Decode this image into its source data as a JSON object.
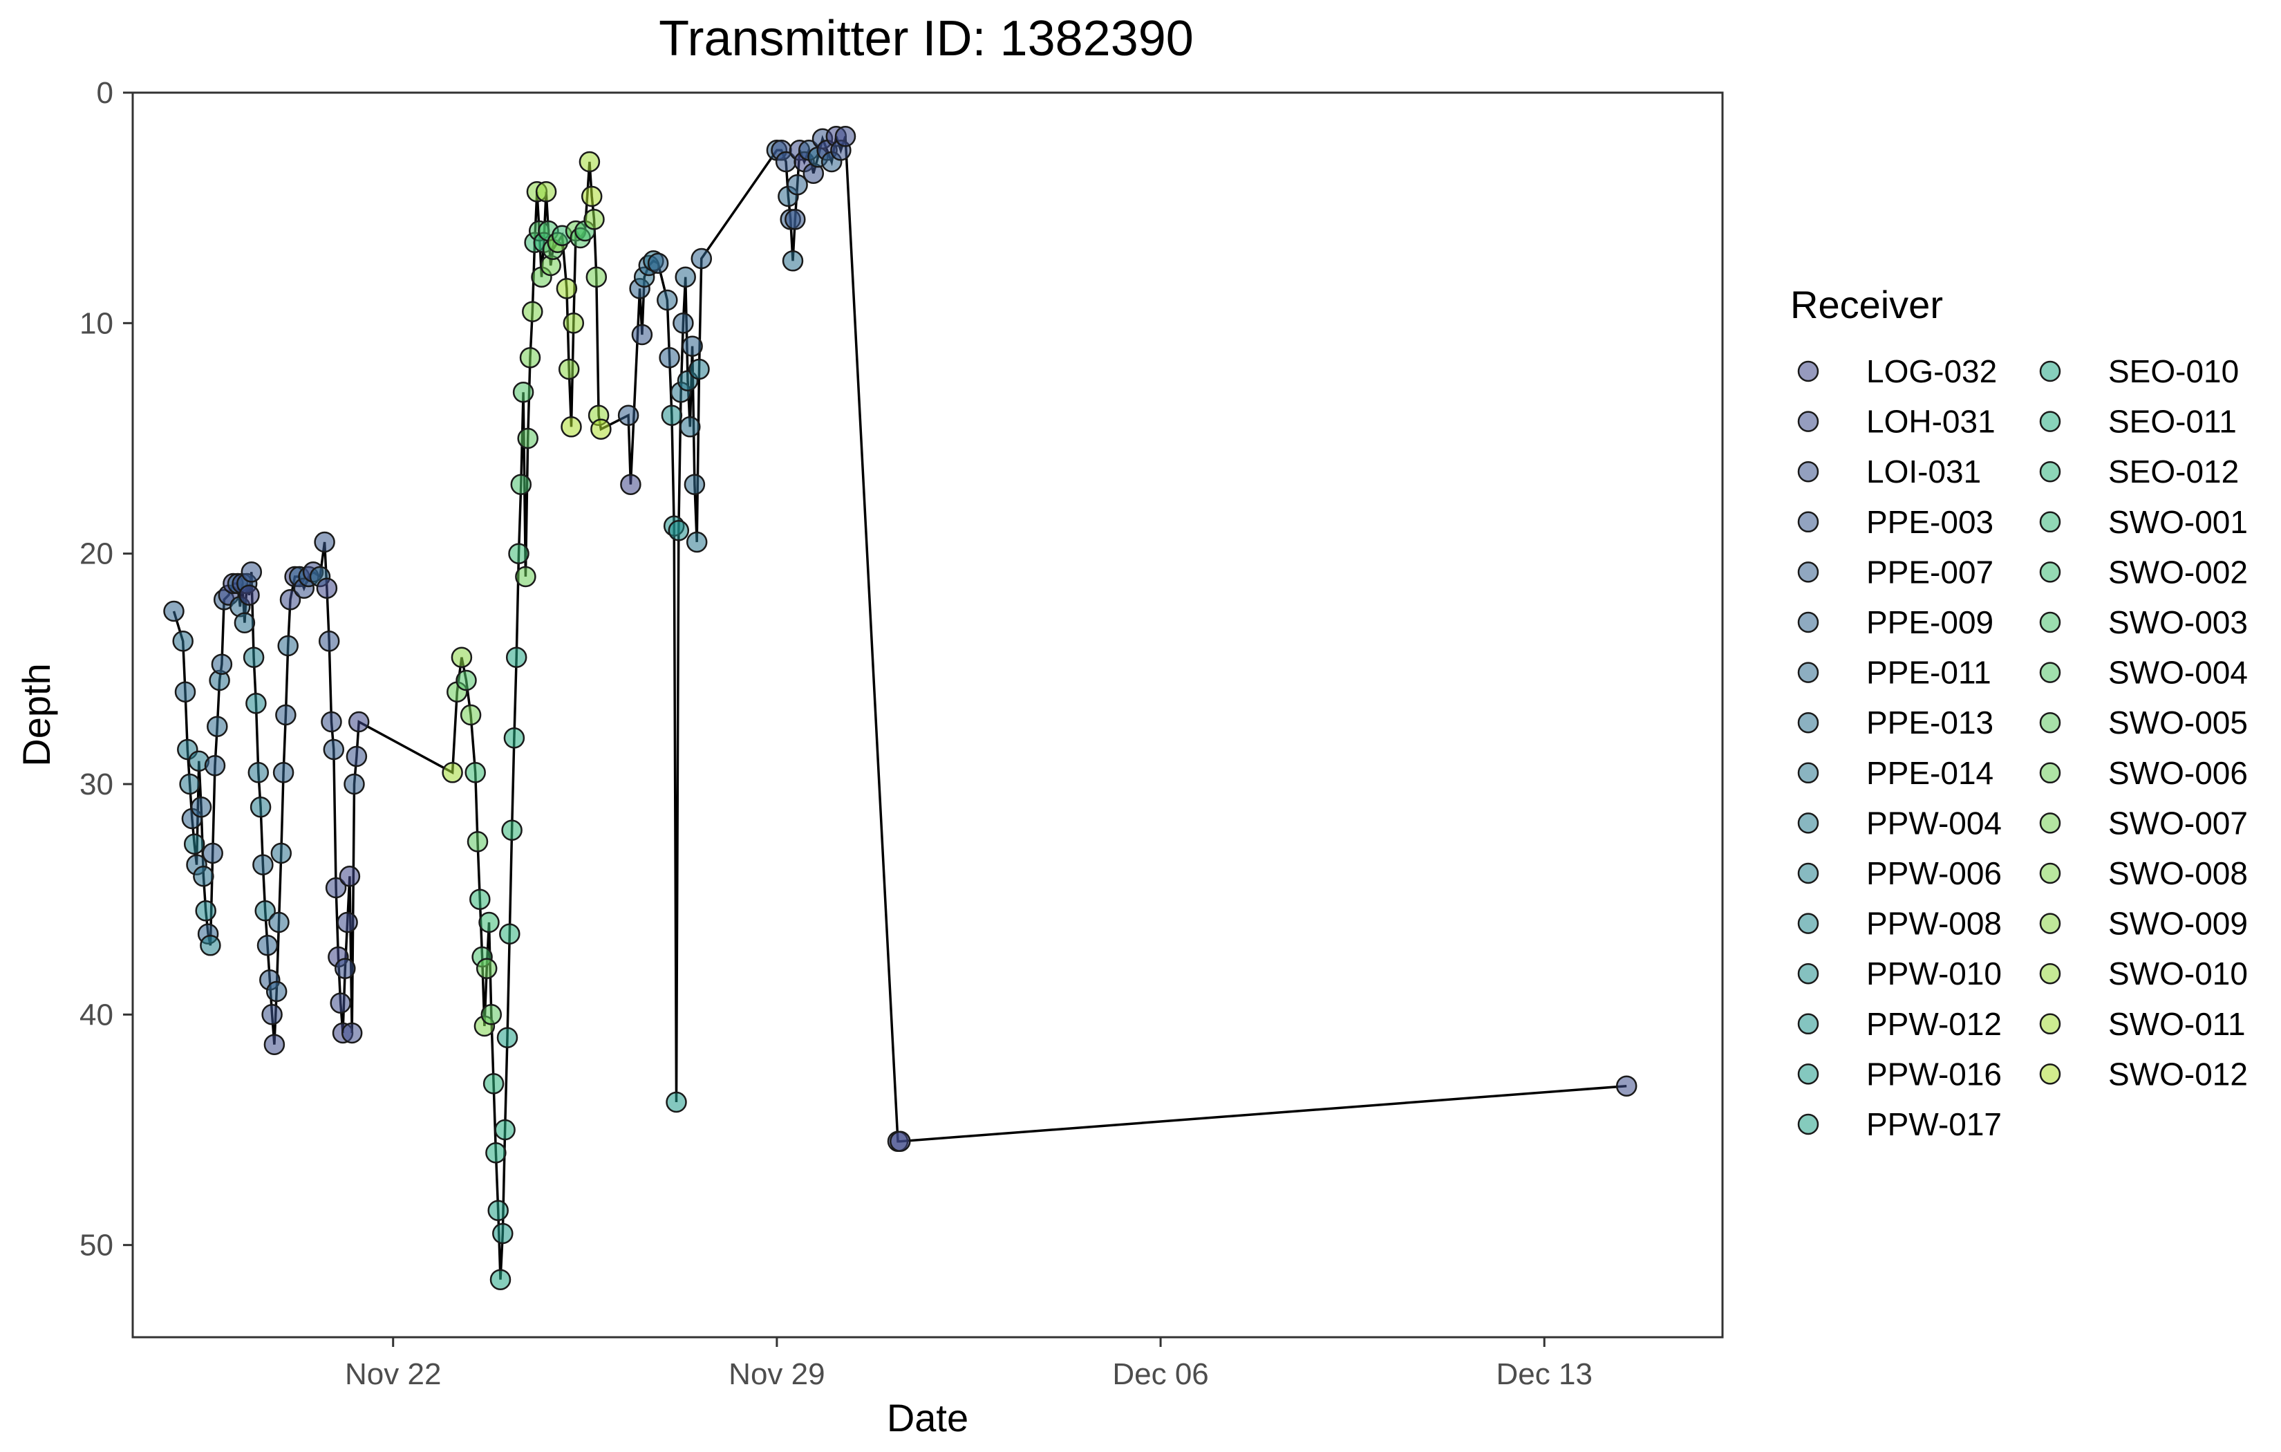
{
  "chart_data": {
    "type": "scatter",
    "title": "Transmitter ID: 1382390",
    "xlabel": "Date",
    "ylabel": "Depth",
    "x_axis_type": "date",
    "y_axis_reversed": true,
    "xlim": [
      "2023-11-17 06:00",
      "2023-12-16 06:00"
    ],
    "ylim": [
      54,
      0
    ],
    "x_ticks": [
      {
        "value": "2023-11-22",
        "label": "Nov 22"
      },
      {
        "value": "2023-11-29",
        "label": "Nov 29"
      },
      {
        "value": "2023-12-06",
        "label": "Dec 06"
      },
      {
        "value": "2023-12-13",
        "label": "Dec 13"
      }
    ],
    "y_ticks": [
      0,
      10,
      20,
      30,
      40,
      50
    ],
    "grid": false,
    "legend_title": "Receiver",
    "legend_position": "right",
    "legend_columns": 2,
    "colors": {
      "line": "#000000",
      "marker_edge": "#1a1a1a",
      "palette_start": "#3e4a89",
      "palette_end": "#7ad151"
    },
    "receivers": [
      {
        "name": "LOG-032",
        "color": "#3f4788"
      },
      {
        "name": "LOH-031",
        "color": "#3e4c8a"
      },
      {
        "name": "LOI-031",
        "color": "#3b528b"
      },
      {
        "name": "PPE-003",
        "color": "#38588c"
      },
      {
        "name": "PPE-007",
        "color": "#355e8d"
      },
      {
        "name": "PPE-009",
        "color": "#32648e"
      },
      {
        "name": "PPE-011",
        "color": "#2f6b8e"
      },
      {
        "name": "PPE-013",
        "color": "#2c718e"
      },
      {
        "name": "PPE-014",
        "color": "#2a768e"
      },
      {
        "name": "PPW-004",
        "color": "#277c8e"
      },
      {
        "name": "PPW-006",
        "color": "#25828e"
      },
      {
        "name": "PPW-008",
        "color": "#23888e"
      },
      {
        "name": "PPW-010",
        "color": "#218e8d"
      },
      {
        "name": "PPW-012",
        "color": "#1f948c"
      },
      {
        "name": "PPW-016",
        "color": "#1f9a8a"
      },
      {
        "name": "PPW-017",
        "color": "#20a086"
      },
      {
        "name": "SEO-010",
        "color": "#22a685"
      },
      {
        "name": "SEO-011",
        "color": "#27ad81"
      },
      {
        "name": "SEO-012",
        "color": "#2eb37c"
      },
      {
        "name": "SWO-001",
        "color": "#35b779"
      },
      {
        "name": "SWO-002",
        "color": "#3dbc74"
      },
      {
        "name": "SWO-003",
        "color": "#48c16e"
      },
      {
        "name": "SWO-004",
        "color": "#52c569"
      },
      {
        "name": "SWO-005",
        "color": "#5ec962"
      },
      {
        "name": "SWO-006",
        "color": "#6ccd5a"
      },
      {
        "name": "SWO-007",
        "color": "#75d054"
      },
      {
        "name": "SWO-008",
        "color": "#7fd34e"
      },
      {
        "name": "SWO-009",
        "color": "#8bd646"
      },
      {
        "name": "SWO-010",
        "color": "#98d83e"
      },
      {
        "name": "SWO-011",
        "color": "#a2da37"
      },
      {
        "name": "SWO-012",
        "color": "#addc30"
      }
    ],
    "points": [
      {
        "t": "2023-11-18 00:00",
        "depth": 22.5,
        "r": "PPE-009"
      },
      {
        "t": "2023-11-18 04:00",
        "depth": 23.8,
        "r": "PPE-013"
      },
      {
        "t": "2023-11-18 05:00",
        "depth": 26.0,
        "r": "PPE-011"
      },
      {
        "t": "2023-11-18 06:00",
        "depth": 28.5,
        "r": "PPW-004"
      },
      {
        "t": "2023-11-18 07:00",
        "depth": 30.0,
        "r": "PPE-014"
      },
      {
        "t": "2023-11-18 08:00",
        "depth": 31.5,
        "r": "PPE-009"
      },
      {
        "t": "2023-11-18 09:00",
        "depth": 32.6,
        "r": "PPW-006"
      },
      {
        "t": "2023-11-18 10:00",
        "depth": 33.5,
        "r": "PPE-011"
      },
      {
        "t": "2023-11-18 11:00",
        "depth": 29.0,
        "r": "PPW-004"
      },
      {
        "t": "2023-11-18 12:00",
        "depth": 31.0,
        "r": "PPE-009"
      },
      {
        "t": "2023-11-18 13:00",
        "depth": 34.0,
        "r": "PPE-013"
      },
      {
        "t": "2023-11-18 14:00",
        "depth": 35.5,
        "r": "PPW-008"
      },
      {
        "t": "2023-11-18 15:00",
        "depth": 36.5,
        "r": "PPE-009"
      },
      {
        "t": "2023-11-18 16:00",
        "depth": 37.0,
        "r": "PPW-006"
      },
      {
        "t": "2023-11-18 17:00",
        "depth": 33.0,
        "r": "PPE-007"
      },
      {
        "t": "2023-11-18 18:00",
        "depth": 29.2,
        "r": "PPE-009"
      },
      {
        "t": "2023-11-18 19:00",
        "depth": 27.5,
        "r": "PPE-011"
      },
      {
        "t": "2023-11-18 20:00",
        "depth": 25.5,
        "r": "PPE-013"
      },
      {
        "t": "2023-11-18 21:00",
        "depth": 24.8,
        "r": "PPE-009"
      },
      {
        "t": "2023-11-18 22:00",
        "depth": 22.0,
        "r": "PPE-007"
      },
      {
        "t": "2023-11-19 00:00",
        "depth": 21.8,
        "r": "LOH-031"
      },
      {
        "t": "2023-11-19 02:00",
        "depth": 21.3,
        "r": "LOG-032"
      },
      {
        "t": "2023-11-19 04:00",
        "depth": 21.3,
        "r": "PPE-009"
      },
      {
        "t": "2023-11-19 05:00",
        "depth": 22.3,
        "r": "PPE-011"
      },
      {
        "t": "2023-11-19 06:00",
        "depth": 21.3,
        "r": "LOH-031"
      },
      {
        "t": "2023-11-19 07:00",
        "depth": 23.0,
        "r": "PPE-013"
      },
      {
        "t": "2023-11-19 08:00",
        "depth": 21.3,
        "r": "PPE-007"
      },
      {
        "t": "2023-11-19 09:00",
        "depth": 21.8,
        "r": "LOG-032"
      },
      {
        "t": "2023-11-19 10:00",
        "depth": 20.8,
        "r": "PPE-003"
      },
      {
        "t": "2023-11-19 11:00",
        "depth": 24.5,
        "r": "PPW-006"
      },
      {
        "t": "2023-11-19 12:00",
        "depth": 26.5,
        "r": "PPW-008"
      },
      {
        "t": "2023-11-19 13:00",
        "depth": 29.5,
        "r": "PPE-014"
      },
      {
        "t": "2023-11-19 14:00",
        "depth": 31.0,
        "r": "PPW-004"
      },
      {
        "t": "2023-11-19 15:00",
        "depth": 33.5,
        "r": "PPE-011"
      },
      {
        "t": "2023-11-19 16:00",
        "depth": 35.5,
        "r": "PPW-006"
      },
      {
        "t": "2023-11-19 17:00",
        "depth": 37.0,
        "r": "PPE-009"
      },
      {
        "t": "2023-11-19 18:00",
        "depth": 38.5,
        "r": "PPE-007"
      },
      {
        "t": "2023-11-19 19:00",
        "depth": 40.0,
        "r": "LOI-031"
      },
      {
        "t": "2023-11-19 20:00",
        "depth": 41.3,
        "r": "LOH-031"
      },
      {
        "t": "2023-11-19 21:00",
        "depth": 39.0,
        "r": "PPE-009"
      },
      {
        "t": "2023-11-19 22:00",
        "depth": 36.0,
        "r": "PPE-011"
      },
      {
        "t": "2023-11-19 23:00",
        "depth": 33.0,
        "r": "PPE-013"
      },
      {
        "t": "2023-11-20 00:00",
        "depth": 29.5,
        "r": "PPE-009"
      },
      {
        "t": "2023-11-20 01:00",
        "depth": 27.0,
        "r": "PPE-007"
      },
      {
        "t": "2023-11-20 02:00",
        "depth": 24.0,
        "r": "PPE-011"
      },
      {
        "t": "2023-11-20 03:00",
        "depth": 22.0,
        "r": "LOH-031"
      },
      {
        "t": "2023-11-20 05:00",
        "depth": 21.0,
        "r": "LOG-032"
      },
      {
        "t": "2023-11-20 07:00",
        "depth": 21.0,
        "r": "PPE-009"
      },
      {
        "t": "2023-11-20 09:00",
        "depth": 21.5,
        "r": "LOI-031"
      },
      {
        "t": "2023-11-20 11:00",
        "depth": 21.0,
        "r": "PPE-007"
      },
      {
        "t": "2023-11-20 13:00",
        "depth": 20.8,
        "r": "LOH-031"
      },
      {
        "t": "2023-11-20 16:00",
        "depth": 21.0,
        "r": "PPE-011"
      },
      {
        "t": "2023-11-20 18:00",
        "depth": 19.5,
        "r": "PPE-003"
      },
      {
        "t": "2023-11-20 19:00",
        "depth": 21.5,
        "r": "LOG-032"
      },
      {
        "t": "2023-11-20 20:00",
        "depth": 23.8,
        "r": "PPE-003"
      },
      {
        "t": "2023-11-20 21:00",
        "depth": 27.3,
        "r": "LOI-031"
      },
      {
        "t": "2023-11-20 22:00",
        "depth": 28.5,
        "r": "PPE-007"
      },
      {
        "t": "2023-11-20 23:00",
        "depth": 34.5,
        "r": "LOH-031"
      },
      {
        "t": "2023-11-21 00:00",
        "depth": 37.5,
        "r": "LOG-032"
      },
      {
        "t": "2023-11-21 01:00",
        "depth": 39.5,
        "r": "LOH-031"
      },
      {
        "t": "2023-11-21 02:00",
        "depth": 40.8,
        "r": "LOG-032"
      },
      {
        "t": "2023-11-21 03:00",
        "depth": 38.0,
        "r": "LOI-031"
      },
      {
        "t": "2023-11-21 04:00",
        "depth": 36.0,
        "r": "LOH-031"
      },
      {
        "t": "2023-11-21 05:00",
        "depth": 34.0,
        "r": "LOG-032"
      },
      {
        "t": "2023-11-21 06:00",
        "depth": 40.8,
        "r": "LOH-031"
      },
      {
        "t": "2023-11-21 07:00",
        "depth": 30.0,
        "r": "PPE-007"
      },
      {
        "t": "2023-11-21 08:00",
        "depth": 28.8,
        "r": "LOI-031"
      },
      {
        "t": "2023-11-21 09:00",
        "depth": 27.3,
        "r": "LOG-032"
      },
      {
        "t": "2023-11-23 02:00",
        "depth": 29.5,
        "r": "SWO-011"
      },
      {
        "t": "2023-11-23 04:00",
        "depth": 26.0,
        "r": "SWO-006"
      },
      {
        "t": "2023-11-23 06:00",
        "depth": 24.5,
        "r": "SWO-009"
      },
      {
        "t": "2023-11-23 08:00",
        "depth": 25.5,
        "r": "SWO-004"
      },
      {
        "t": "2023-11-23 10:00",
        "depth": 27.0,
        "r": "SWO-007"
      },
      {
        "t": "2023-11-23 12:00",
        "depth": 29.5,
        "r": "SWO-002"
      },
      {
        "t": "2023-11-23 13:00",
        "depth": 32.5,
        "r": "SWO-005"
      },
      {
        "t": "2023-11-23 14:00",
        "depth": 35.0,
        "r": "SWO-001"
      },
      {
        "t": "2023-11-23 15:00",
        "depth": 37.5,
        "r": "SWO-003"
      },
      {
        "t": "2023-11-23 16:00",
        "depth": 40.5,
        "r": "SWO-008"
      },
      {
        "t": "2023-11-23 17:00",
        "depth": 38.0,
        "r": "SWO-006"
      },
      {
        "t": "2023-11-23 18:00",
        "depth": 36.0,
        "r": "SWO-002"
      },
      {
        "t": "2023-11-23 19:00",
        "depth": 40.0,
        "r": "SWO-005"
      },
      {
        "t": "2023-11-23 20:00",
        "depth": 43.0,
        "r": "SEO-012"
      },
      {
        "t": "2023-11-23 21:00",
        "depth": 46.0,
        "r": "SEO-011"
      },
      {
        "t": "2023-11-23 22:00",
        "depth": 48.5,
        "r": "PPW-017"
      },
      {
        "t": "2023-11-23 23:00",
        "depth": 51.5,
        "r": "SEO-010"
      },
      {
        "t": "2023-11-24 00:00",
        "depth": 49.5,
        "r": "PPW-016"
      },
      {
        "t": "2023-11-24 01:00",
        "depth": 45.0,
        "r": "SEO-011"
      },
      {
        "t": "2023-11-24 02:00",
        "depth": 41.0,
        "r": "PPW-017"
      },
      {
        "t": "2023-11-24 03:00",
        "depth": 36.5,
        "r": "SEO-012"
      },
      {
        "t": "2023-11-24 04:00",
        "depth": 32.0,
        "r": "SWO-001"
      },
      {
        "t": "2023-11-24 05:00",
        "depth": 28.0,
        "r": "SEO-011"
      },
      {
        "t": "2023-11-24 06:00",
        "depth": 24.5,
        "r": "SEO-010"
      },
      {
        "t": "2023-11-24 07:00",
        "depth": 20.0,
        "r": "SWO-002"
      },
      {
        "t": "2023-11-24 08:00",
        "depth": 17.0,
        "r": "SWO-003"
      },
      {
        "t": "2023-11-24 09:00",
        "depth": 13.0,
        "r": "SWO-004"
      },
      {
        "t": "2023-11-24 10:00",
        "depth": 21.0,
        "r": "SWO-006"
      },
      {
        "t": "2023-11-24 11:00",
        "depth": 15.0,
        "r": "SWO-005"
      },
      {
        "t": "2023-11-24 12:00",
        "depth": 11.5,
        "r": "SWO-007"
      },
      {
        "t": "2023-11-24 13:00",
        "depth": 9.5,
        "r": "SWO-008"
      },
      {
        "t": "2023-11-24 14:00",
        "depth": 6.5,
        "r": "SWO-002"
      },
      {
        "t": "2023-11-24 15:00",
        "depth": 4.3,
        "r": "SWO-009"
      },
      {
        "t": "2023-11-24 16:00",
        "depth": 6.0,
        "r": "SWO-004"
      },
      {
        "t": "2023-11-24 17:00",
        "depth": 8.0,
        "r": "SWO-006"
      },
      {
        "t": "2023-11-24 18:00",
        "depth": 6.5,
        "r": "SWO-001"
      },
      {
        "t": "2023-11-24 19:00",
        "depth": 4.3,
        "r": "SWO-010"
      },
      {
        "t": "2023-11-24 20:00",
        "depth": 6.0,
        "r": "SWO-003"
      },
      {
        "t": "2023-11-24 21:00",
        "depth": 7.5,
        "r": "SWO-007"
      },
      {
        "t": "2023-11-24 22:00",
        "depth": 6.8,
        "r": "SWO-005"
      },
      {
        "t": "2023-11-25 00:00",
        "depth": 6.5,
        "r": "SWO-008"
      },
      {
        "t": "2023-11-25 02:00",
        "depth": 6.2,
        "r": "SWO-002"
      },
      {
        "t": "2023-11-25 04:00",
        "depth": 8.5,
        "r": "SWO-011"
      },
      {
        "t": "2023-11-25 05:00",
        "depth": 12.0,
        "r": "SWO-009"
      },
      {
        "t": "2023-11-25 06:00",
        "depth": 14.5,
        "r": "SWO-012"
      },
      {
        "t": "2023-11-25 07:00",
        "depth": 10.0,
        "r": "SWO-010"
      },
      {
        "t": "2023-11-25 08:00",
        "depth": 6.0,
        "r": "SWO-006"
      },
      {
        "t": "2023-11-25 10:00",
        "depth": 6.3,
        "r": "SWO-004"
      },
      {
        "t": "2023-11-25 12:00",
        "depth": 6.0,
        "r": "SWO-003"
      },
      {
        "t": "2023-11-25 14:00",
        "depth": 3.0,
        "r": "SWO-011"
      },
      {
        "t": "2023-11-25 15:00",
        "depth": 4.5,
        "r": "SWO-012"
      },
      {
        "t": "2023-11-25 16:00",
        "depth": 5.5,
        "r": "SWO-009"
      },
      {
        "t": "2023-11-25 17:00",
        "depth": 8.0,
        "r": "SWO-007"
      },
      {
        "t": "2023-11-25 18:00",
        "depth": 14.0,
        "r": "SWO-010"
      },
      {
        "t": "2023-11-25 19:00",
        "depth": 14.6,
        "r": "SWO-012"
      },
      {
        "t": "2023-11-26 07:00",
        "depth": 14.0,
        "r": "PPE-007"
      },
      {
        "t": "2023-11-26 08:00",
        "depth": 17.0,
        "r": "LOG-032"
      },
      {
        "t": "2023-11-26 12:00",
        "depth": 8.5,
        "r": "PPE-009"
      },
      {
        "t": "2023-11-26 13:00",
        "depth": 10.5,
        "r": "PPE-003"
      },
      {
        "t": "2023-11-26 14:00",
        "depth": 8.0,
        "r": "PPE-013"
      },
      {
        "t": "2023-11-26 16:00",
        "depth": 7.5,
        "r": "PPE-011"
      },
      {
        "t": "2023-11-26 18:00",
        "depth": 7.3,
        "r": "PPE-014"
      },
      {
        "t": "2023-11-26 20:00",
        "depth": 7.4,
        "r": "PPE-009"
      },
      {
        "t": "2023-11-27 00:00",
        "depth": 9.0,
        "r": "PPE-011"
      },
      {
        "t": "2023-11-27 01:00",
        "depth": 11.5,
        "r": "PPE-009"
      },
      {
        "t": "2023-11-27 02:00",
        "depth": 14.0,
        "r": "PPW-010"
      },
      {
        "t": "2023-11-27 03:00",
        "depth": 18.8,
        "r": "PPW-012"
      },
      {
        "t": "2023-11-27 04:00",
        "depth": 43.8,
        "r": "PPW-016"
      },
      {
        "t": "2023-11-27 05:00",
        "depth": 19.0,
        "r": "PPW-010"
      },
      {
        "t": "2023-11-27 06:00",
        "depth": 13.0,
        "r": "PPE-014"
      },
      {
        "t": "2023-11-27 07:00",
        "depth": 10.0,
        "r": "PPE-009"
      },
      {
        "t": "2023-11-27 08:00",
        "depth": 8.0,
        "r": "PPE-011"
      },
      {
        "t": "2023-11-27 09:00",
        "depth": 12.5,
        "r": "PPW-004"
      },
      {
        "t": "2023-11-27 10:00",
        "depth": 14.5,
        "r": "PPE-013"
      },
      {
        "t": "2023-11-27 11:00",
        "depth": 11.0,
        "r": "PPE-009"
      },
      {
        "t": "2023-11-27 12:00",
        "depth": 17.0,
        "r": "PPE-011"
      },
      {
        "t": "2023-11-27 13:00",
        "depth": 19.5,
        "r": "PPE-014"
      },
      {
        "t": "2023-11-27 14:00",
        "depth": 12.0,
        "r": "PPW-004"
      },
      {
        "t": "2023-11-27 15:00",
        "depth": 7.2,
        "r": "PPE-009"
      },
      {
        "t": "2023-11-29 00:00",
        "depth": 2.5,
        "r": "PPE-009"
      },
      {
        "t": "2023-11-29 02:00",
        "depth": 2.5,
        "r": "LOI-031"
      },
      {
        "t": "2023-11-29 04:00",
        "depth": 3.0,
        "r": "PPE-003"
      },
      {
        "t": "2023-11-29 05:00",
        "depth": 4.5,
        "r": "PPE-011"
      },
      {
        "t": "2023-11-29 06:00",
        "depth": 5.5,
        "r": "PPE-007"
      },
      {
        "t": "2023-11-29 07:00",
        "depth": 7.3,
        "r": "PPE-013"
      },
      {
        "t": "2023-11-29 08:00",
        "depth": 5.5,
        "r": "PPE-003"
      },
      {
        "t": "2023-11-29 09:00",
        "depth": 4.0,
        "r": "PPE-009"
      },
      {
        "t": "2023-11-29 10:00",
        "depth": 2.5,
        "r": "LOH-031"
      },
      {
        "t": "2023-11-29 12:00",
        "depth": 3.0,
        "r": "LOG-032"
      },
      {
        "t": "2023-11-29 14:00",
        "depth": 2.5,
        "r": "PPE-007"
      },
      {
        "t": "2023-11-29 16:00",
        "depth": 3.5,
        "r": "LOI-031"
      },
      {
        "t": "2023-11-29 18:00",
        "depth": 2.8,
        "r": "PPE-011"
      },
      {
        "t": "2023-11-29 20:00",
        "depth": 2.0,
        "r": "PPE-003"
      },
      {
        "t": "2023-11-29 22:00",
        "depth": 2.5,
        "r": "LOH-031"
      },
      {
        "t": "2023-11-30 00:00",
        "depth": 3.0,
        "r": "PPE-009"
      },
      {
        "t": "2023-11-30 02:00",
        "depth": 1.9,
        "r": "LOG-032"
      },
      {
        "t": "2023-11-30 04:00",
        "depth": 2.5,
        "r": "LOI-031"
      },
      {
        "t": "2023-11-30 06:00",
        "depth": 1.9,
        "r": "LOH-031"
      },
      {
        "t": "2023-12-01 05:00",
        "depth": 45.5,
        "r": "LOH-031"
      },
      {
        "t": "2023-12-01 06:00",
        "depth": 45.5,
        "r": "LOG-032"
      },
      {
        "t": "2023-12-14 12:00",
        "depth": 43.1,
        "r": "LOH-031"
      }
    ]
  }
}
